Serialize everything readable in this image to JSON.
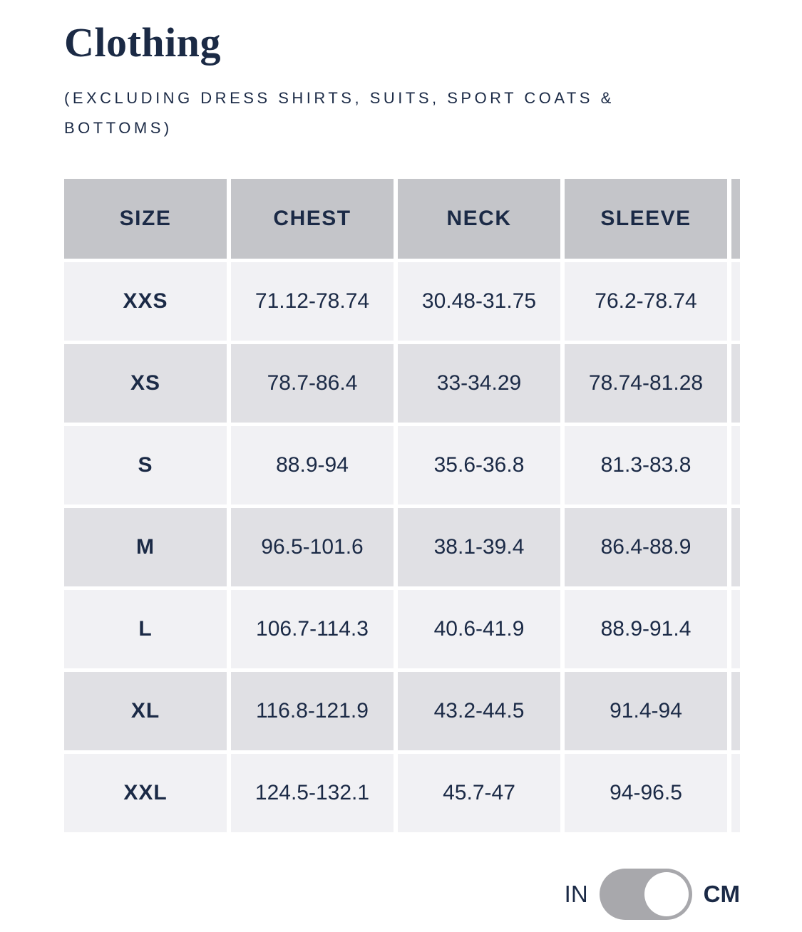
{
  "header": {
    "title": "Clothing",
    "subtitle": "(EXCLUDING DRESS SHIRTS, SUITS, SPORT COATS & BOTTOMS)"
  },
  "table": {
    "columns": [
      "SIZE",
      "CHEST",
      "NECK",
      "SLEEVE"
    ],
    "rows": [
      {
        "size": "XXS",
        "chest": "71.12-78.74",
        "neck": "30.48-31.75",
        "sleeve": "76.2-78.74"
      },
      {
        "size": "XS",
        "chest": "78.7-86.4",
        "neck": "33-34.29",
        "sleeve": "78.74-81.28"
      },
      {
        "size": "S",
        "chest": "88.9-94",
        "neck": "35.6-36.8",
        "sleeve": "81.3-83.8"
      },
      {
        "size": "M",
        "chest": "96.5-101.6",
        "neck": "38.1-39.4",
        "sleeve": "86.4-88.9"
      },
      {
        "size": "L",
        "chest": "106.7-114.3",
        "neck": "40.6-41.9",
        "sleeve": "88.9-91.4"
      },
      {
        "size": "XL",
        "chest": "116.8-121.9",
        "neck": "43.2-44.5",
        "sleeve": "91.4-94"
      },
      {
        "size": "XXL",
        "chest": "124.5-132.1",
        "neck": "45.7-47",
        "sleeve": "94-96.5"
      }
    ]
  },
  "unit_toggle": {
    "left_label": "IN",
    "right_label": "CM",
    "selected": "CM"
  },
  "colors": {
    "text_navy": "#1b2a46",
    "header_gray": "#c4c5c9",
    "row_light": "#f1f1f4",
    "row_dark": "#e0e0e4",
    "toggle_gray": "#a8a8ac",
    "knob_white": "#ffffff"
  }
}
